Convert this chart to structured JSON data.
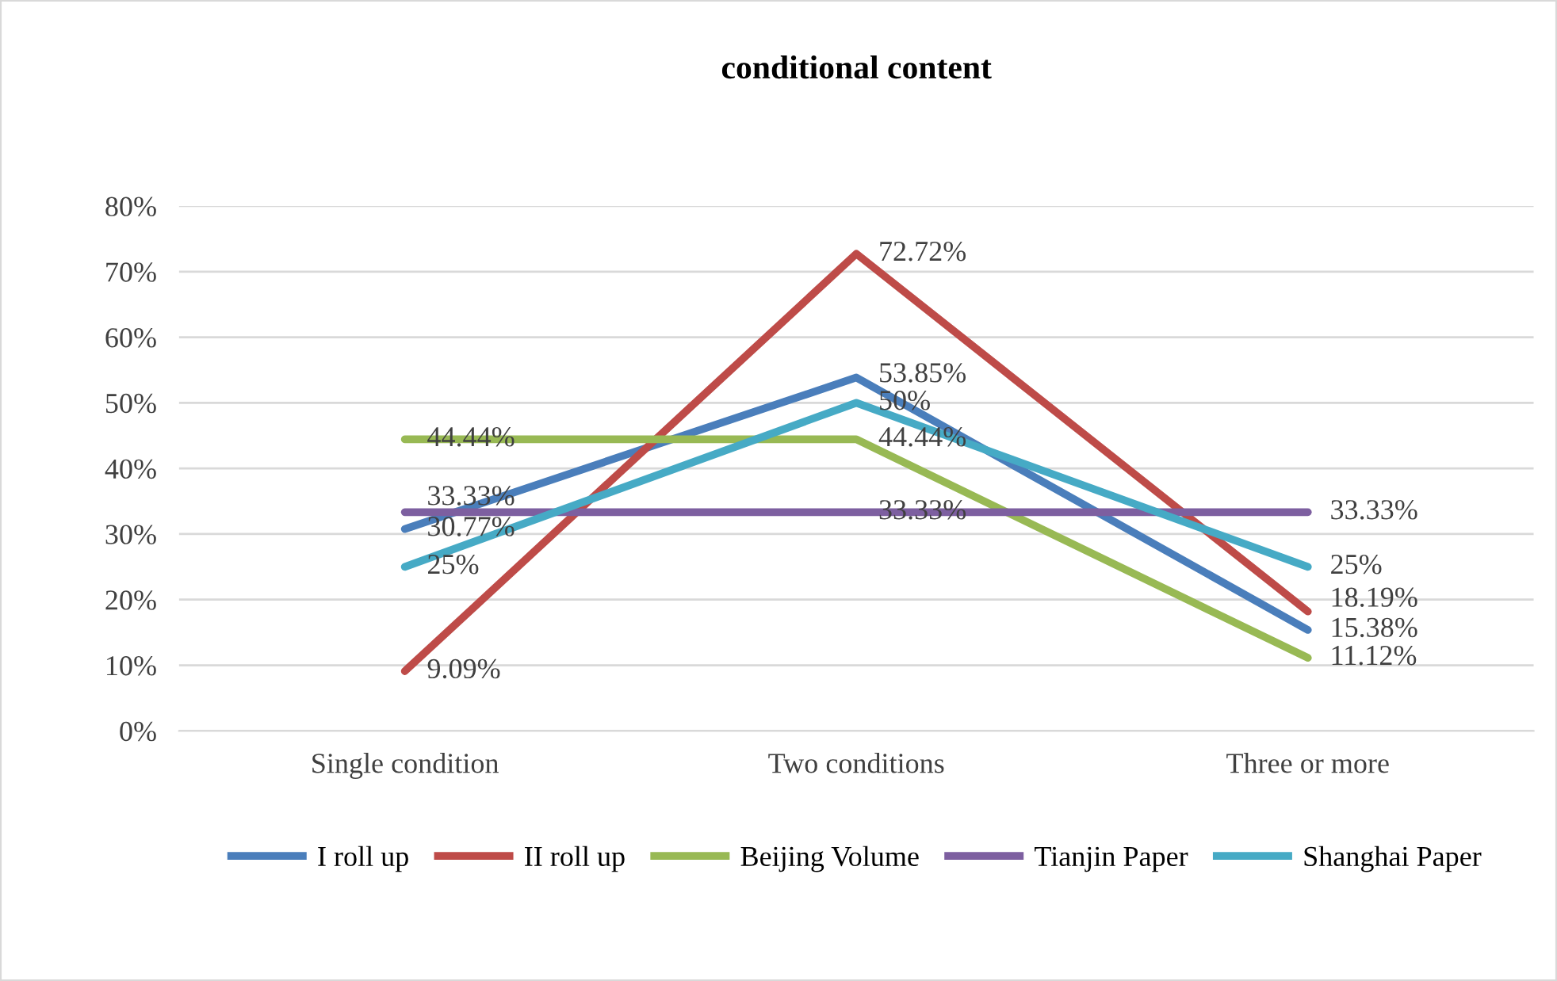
{
  "chart_data": {
    "type": "line",
    "title": "conditional content",
    "categories": [
      "Single condition",
      "Two conditions",
      "Three or more"
    ],
    "series": [
      {
        "name": "I roll up",
        "color": "#4a7ebb",
        "values": [
          30.77,
          53.85,
          15.38
        ],
        "value_labels": [
          "30.77%",
          "53.85%",
          "15.38%"
        ]
      },
      {
        "name": "II roll up",
        "color": "#be4b48",
        "values": [
          9.09,
          72.72,
          18.19
        ],
        "value_labels": [
          "9.09%",
          "72.72%",
          "18.19%"
        ]
      },
      {
        "name": "Beijing Volume",
        "color": "#98b954",
        "values": [
          44.44,
          44.44,
          11.12
        ],
        "value_labels": [
          "44.44%",
          "44.44%",
          "11.12%"
        ]
      },
      {
        "name": "Tianjin Paper",
        "color": "#7d5fa0",
        "values": [
          33.33,
          33.33,
          33.33
        ],
        "value_labels": [
          "33.33%",
          "33.33%",
          "33.33%"
        ]
      },
      {
        "name": "Shanghai Paper",
        "color": "#46aac5",
        "values": [
          25,
          50,
          25
        ],
        "value_labels": [
          "25%",
          "50%",
          "25%"
        ]
      }
    ],
    "ylim": [
      0,
      80
    ],
    "yticks": [
      {
        "value": 0,
        "label": "0%"
      },
      {
        "value": 10,
        "label": "10%"
      },
      {
        "value": 20,
        "label": "20%"
      },
      {
        "value": 30,
        "label": "30%"
      },
      {
        "value": 40,
        "label": "40%"
      },
      {
        "value": 50,
        "label": "50%"
      },
      {
        "value": 60,
        "label": "60%"
      },
      {
        "value": 70,
        "label": "70%"
      },
      {
        "value": 80,
        "label": "80%"
      }
    ],
    "grid": "y",
    "legend": "bottom",
    "marker": "none",
    "line_style": "solid"
  }
}
